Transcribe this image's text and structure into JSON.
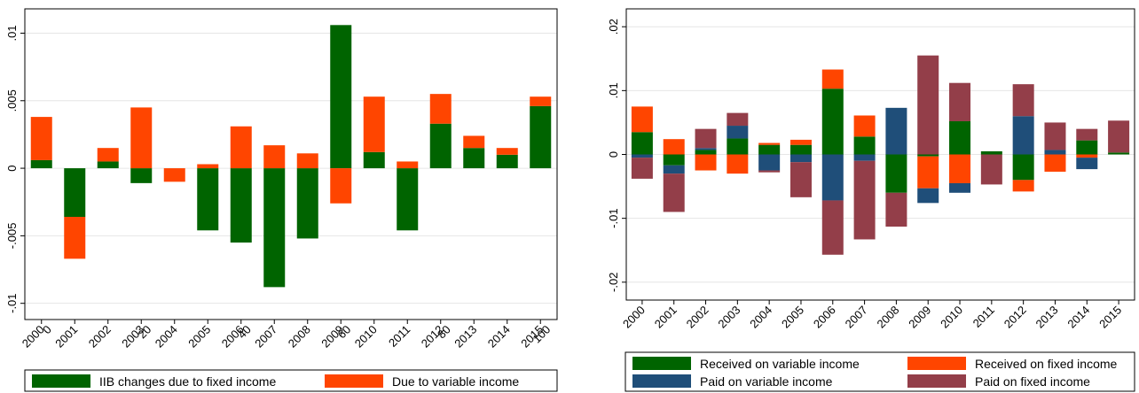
{
  "chart_data": [
    {
      "type": "bar",
      "stacked": true,
      "title": "",
      "xlabel": "",
      "ylabel": "",
      "categories": [
        "2000",
        "2001",
        "2002",
        "2003",
        "2004",
        "2005",
        "2006",
        "2007",
        "2008",
        "2009",
        "2010",
        "2011",
        "2012",
        "2013",
        "2014",
        "2015"
      ],
      "y_ticks": [
        {
          "value": 0.01,
          "label": ".01"
        },
        {
          "value": 0.005,
          "label": ".005"
        },
        {
          "value": 0,
          "label": "0"
        },
        {
          "value": -0.005,
          "label": "-.005"
        },
        {
          "value": -0.01,
          "label": "-.01"
        }
      ],
      "ylim": [
        -0.0112,
        0.0118
      ],
      "grid": true,
      "legend_position": "bottom",
      "stray_labels": [
        {
          "text": "0",
          "near": "2000"
        },
        {
          "text": "20",
          "near": "2003"
        },
        {
          "text": "40",
          "near": "2006"
        },
        {
          "text": "60",
          "near": "2009"
        },
        {
          "text": "80",
          "near": "2012"
        },
        {
          "text": "100",
          "near": "2015"
        }
      ],
      "series": [
        {
          "name": "IIB changes due to fixed income",
          "color": "#006400",
          "values": [
            0.0006,
            -0.0036,
            0.0005,
            -0.0011,
            0,
            -0.0046,
            -0.0055,
            -0.0088,
            -0.0052,
            0.0106,
            0.0012,
            -0.0046,
            0.0033,
            0.0015,
            0.001,
            0.0046
          ]
        },
        {
          "name": "Due to variable income",
          "color": "#FF4500",
          "values": [
            0.0032,
            -0.0031,
            0.001,
            0.0045,
            -0.001,
            0.0003,
            0.0031,
            0.0017,
            0.0011,
            -0.0026,
            0.0041,
            0.0005,
            0.0022,
            0.0009,
            0.0005,
            0.0007
          ]
        }
      ]
    },
    {
      "type": "bar",
      "stacked": true,
      "title": "",
      "xlabel": "",
      "ylabel": "",
      "categories": [
        "2000",
        "2001",
        "2002",
        "2003",
        "2004",
        "2005",
        "2006",
        "2007",
        "2008",
        "2009",
        "2010",
        "2011",
        "2012",
        "2013",
        "2014",
        "2015"
      ],
      "y_ticks": [
        {
          "value": 0.02,
          "label": ".02"
        },
        {
          "value": 0.01,
          "label": ".01"
        },
        {
          "value": 0,
          "label": "0"
        },
        {
          "value": -0.01,
          "label": "-.01"
        },
        {
          "value": -0.02,
          "label": "-.02"
        }
      ],
      "ylim": [
        -0.0228,
        0.0228
      ],
      "grid": true,
      "legend_position": "bottom",
      "series": [
        {
          "name": "Received on variable income",
          "color": "#006400",
          "values": [
            0.0035,
            -0.0017,
            0.0007,
            0.0025,
            0.0015,
            0.0015,
            0.0103,
            0.0028,
            -0.006,
            -0.0003,
            0.0052,
            0.0005,
            -0.004,
            0,
            0.0022,
            0.0003
          ]
        },
        {
          "name": "Received on fixed income",
          "color": "#FF4500",
          "values": [
            0.004,
            0.0024,
            -0.0025,
            -0.003,
            0.0003,
            0.0008,
            0.003,
            0.0033,
            0,
            -0.005,
            -0.0045,
            0,
            -0.0018,
            -0.0027,
            -0.0005,
            0
          ]
        },
        {
          "name": "Paid on variable income",
          "color": "#1F4E79",
          "values": [
            -0.0005,
            -0.0013,
            0.0003,
            0.002,
            -0.0025,
            -0.0012,
            -0.0072,
            -0.001,
            0.0073,
            -0.0023,
            -0.0015,
            0,
            0.006,
            0.0007,
            -0.0018,
            0
          ]
        },
        {
          "name": "Paid on fixed income",
          "color": "#933E49",
          "values": [
            -0.0033,
            -0.006,
            0.003,
            0.002,
            -0.0003,
            -0.0055,
            -0.0085,
            -0.0123,
            -0.0053,
            0.0155,
            0.006,
            -0.0047,
            0.005,
            0.0043,
            0.0018,
            0.005
          ]
        }
      ]
    }
  ]
}
